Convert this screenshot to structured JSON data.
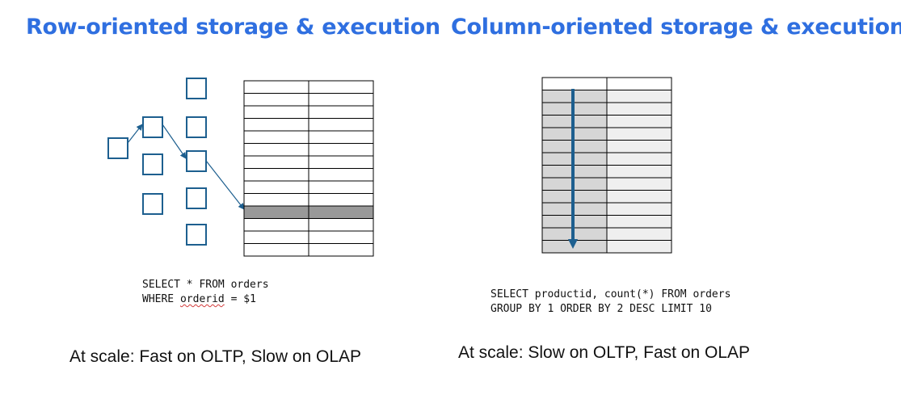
{
  "left_panel": {
    "title": "Row-oriented storage & execution",
    "query_line1": "SELECT * FROM orders",
    "query_line2_prefix": "WHERE ",
    "query_line2_keyword": "orderid",
    "query_line2_suffix": " = $1",
    "summary": "At scale: Fast on OLTP, Slow on OLAP",
    "table": {
      "columns": 2,
      "rows": 14,
      "highlighted_row": 10
    }
  },
  "right_panel": {
    "title": "Column-oriented storage & execution",
    "query_line1": "SELECT productid, count(*) FROM orders",
    "query_line2": "GROUP BY 1 ORDER BY 2 DESC LIMIT 10",
    "summary": "At scale: Slow on OLTP, Fast on OLAP",
    "table": {
      "columns": 2,
      "rows": 14
    }
  },
  "colors": {
    "title": "#2f6fe0",
    "index_node": "#1d5f8f",
    "arrow": "#1d5f8f",
    "highlight_row": "#999999",
    "column_shade_dark": "#d6d6d6",
    "column_shade_light": "#efefef"
  }
}
